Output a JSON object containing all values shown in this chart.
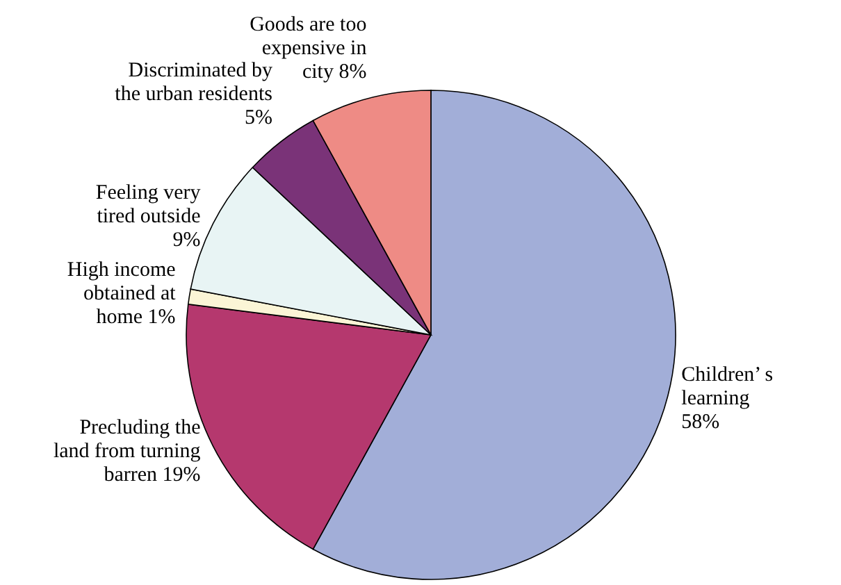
{
  "chart_data": {
    "type": "pie",
    "categories": [
      "Children’ s learning",
      "Precluding the land from turning barren",
      "High income obtained at home",
      "Feeling very tired outside",
      "Discriminated by the urban residents",
      "Goods are too expensive in city"
    ],
    "values": [
      58,
      19,
      1,
      9,
      5,
      8
    ],
    "value_labels": [
      "58%",
      "19%",
      "1%",
      "9%",
      "5%",
      "8%"
    ],
    "colors": [
      "#a2aed8",
      "#b5386e",
      "#fbf5d6",
      "#e8f4f4",
      "#7a3378",
      "#ee8b85"
    ]
  }
}
